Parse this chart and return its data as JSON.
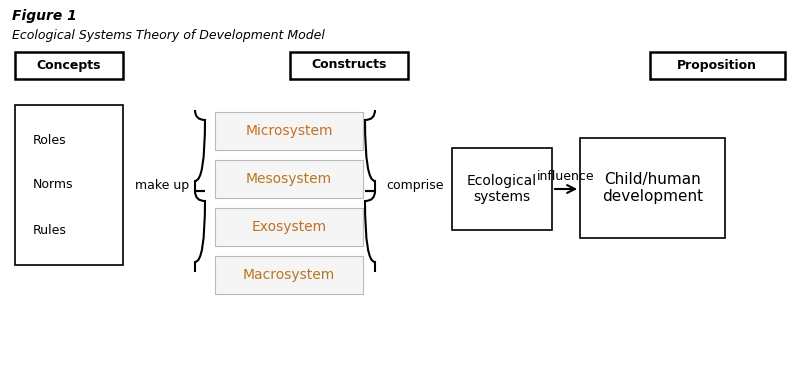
{
  "figure_title": "Figure 1",
  "subtitle": "Ecological Systems Theory of Development Model",
  "concepts_label": "Concepts",
  "constructs_label": "Constructs",
  "proposition_label": "Proposition",
  "roles_norms_rules": [
    "Roles",
    "Norms",
    "Rules"
  ],
  "systems": [
    "Microsystem",
    "Mesosystem",
    "Exosystem",
    "Macrosystem"
  ],
  "sys_text_colors": [
    "#C87020",
    "#B87820",
    "#C07020",
    "#B87820"
  ],
  "ecological_systems_label": "Ecological\nsystems",
  "child_human_label": "Child/human\ndevelopment",
  "make_up_label": "make up",
  "comprise_label": "comprise",
  "influence_label": "influence",
  "bg_color": "#ffffff",
  "title_fontsize": 10,
  "subtitle_fontsize": 9,
  "label_fontsize": 9,
  "header_fontsize": 9,
  "sys_fontsize": 10,
  "eco_fontsize": 10,
  "child_fontsize": 11
}
